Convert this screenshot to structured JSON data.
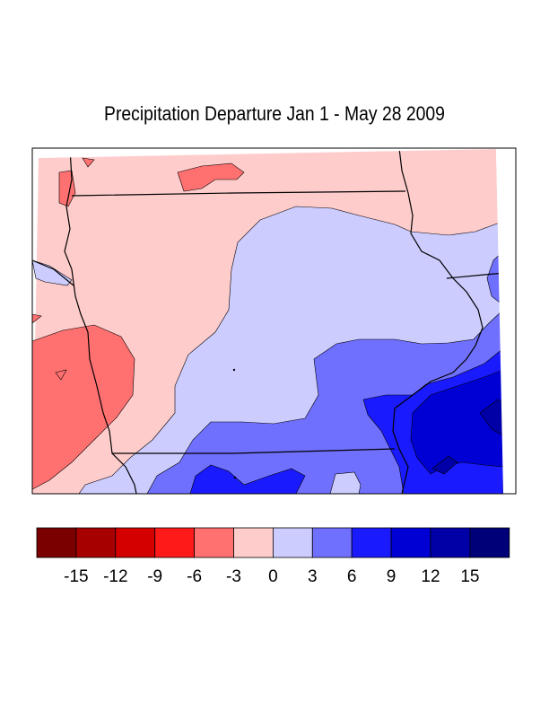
{
  "title": "Precipitation Departure Jan 1 - May 28 2009",
  "legend": {
    "colors": [
      "#7a0000",
      "#a60000",
      "#d40000",
      "#ff1a1a",
      "#ff7070",
      "#ffcccc",
      "#ccccff",
      "#7070ff",
      "#1a1aff",
      "#0000d4",
      "#0000a6",
      "#000078"
    ],
    "tick_labels": [
      "-15",
      "-12",
      "-9",
      "-6",
      "-3",
      "0",
      "3",
      "6",
      "9",
      "12",
      "15"
    ]
  },
  "map": {
    "region_colors": {
      "minus_6_to_minus_3": "#ff7070",
      "minus_3_to_0": "#ffcccc",
      "0_to_3": "#ccccff",
      "3_to_6": "#7070ff",
      "6_to_9": "#1a1aff",
      "9_to_12": "#0000d4",
      "12_to_15": "#0000a6"
    }
  }
}
